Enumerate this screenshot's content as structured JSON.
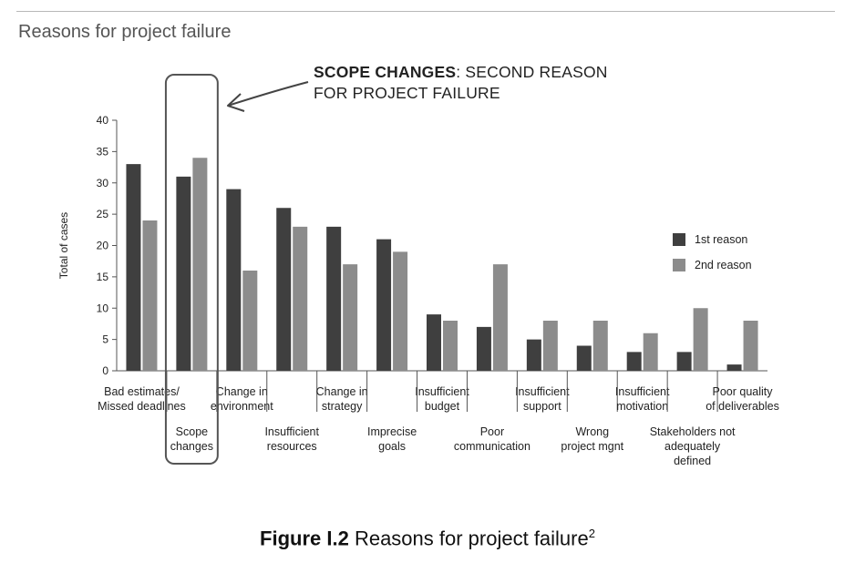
{
  "header": {
    "title": "Reasons for project failure"
  },
  "annotation": {
    "bold": "SCOPE CHANGES",
    "rest_line1": ": SECOND REASON",
    "line2": "FOR PROJECT FAILURE"
  },
  "caption": {
    "label": "Figure I.2",
    "text": " Reasons for project failure",
    "sup": "2"
  },
  "colors": {
    "first": "#3f3f3f",
    "second": "#8c8c8c",
    "annotation_box": "#555555"
  },
  "chart_data": {
    "type": "bar",
    "ylabel": "Total of cases",
    "ylim": [
      0,
      40
    ],
    "yticks": [
      0,
      5,
      10,
      15,
      20,
      25,
      30,
      35,
      40
    ],
    "categories": [
      [
        "Bad estimates/",
        "Missed deadlines"
      ],
      [
        "Scope",
        "changes"
      ],
      [
        "Change in",
        "environment"
      ],
      [
        "Insufficient",
        "resources"
      ],
      [
        "Change in",
        "strategy"
      ],
      [
        "Imprecise",
        "goals"
      ],
      [
        "Insufficient",
        "budget"
      ],
      [
        "Poor",
        "communication"
      ],
      [
        "Insufficient",
        "support"
      ],
      [
        "Wrong",
        "project mgnt"
      ],
      [
        "Insufficient",
        "motivation"
      ],
      [
        "Stakeholders not",
        "adequately",
        "defined"
      ],
      [
        "Poor quality",
        "of deliverables"
      ]
    ],
    "series": [
      {
        "name": "1st reason",
        "values": [
          33,
          31,
          29,
          26,
          23,
          21,
          9,
          7,
          5,
          4,
          3,
          3,
          1
        ]
      },
      {
        "name": "2nd reason",
        "values": [
          24,
          34,
          16,
          23,
          17,
          19,
          8,
          17,
          8,
          8,
          6,
          10,
          8
        ]
      }
    ],
    "legend": "right",
    "grid": false,
    "highlight_category": 1
  }
}
